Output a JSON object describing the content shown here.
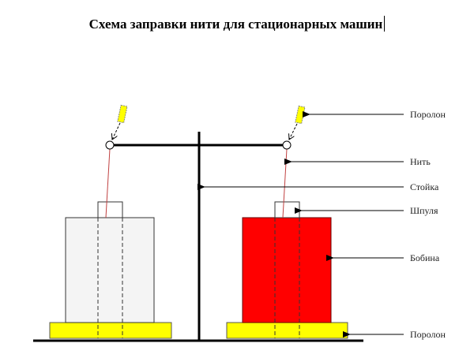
{
  "title": "Схема заправки нити для стационарных машин",
  "labels": {
    "foam_top": "Поролон",
    "thread": "Нить",
    "stand": "Стойка",
    "spool": "Шпуля",
    "bobbin": "Бобина",
    "foam_bottom": "Поролон"
  },
  "colors": {
    "bobbin_left": "#f4f4f4",
    "bobbin_right": "#ff0000",
    "foam": "#ffff00",
    "thread": "#c04040"
  }
}
